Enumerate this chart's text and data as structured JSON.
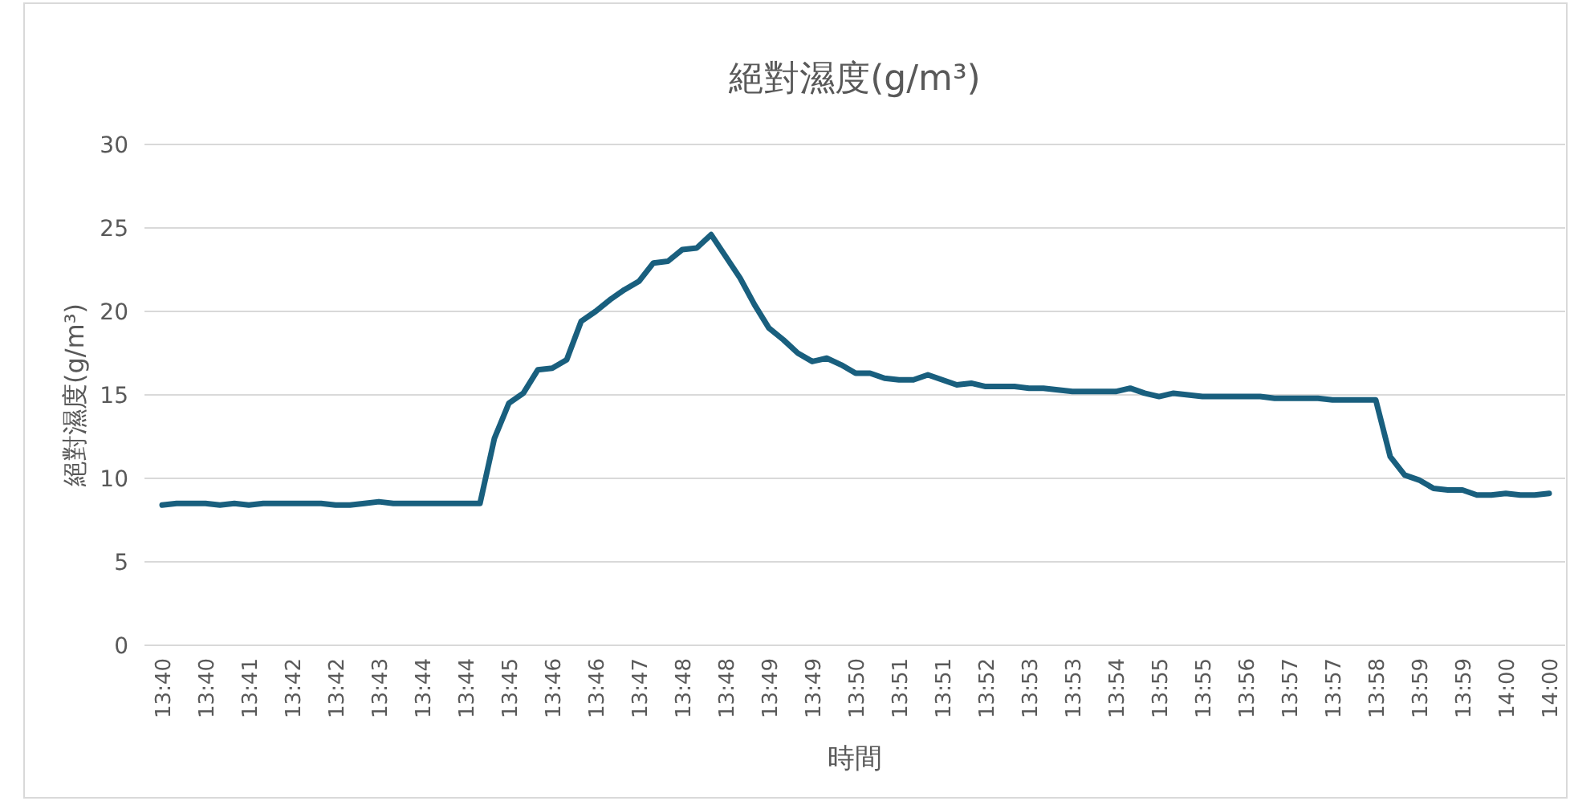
{
  "chart_data": {
    "type": "line",
    "title": "絕對濕度(g/m³)",
    "xlabel": "時間",
    "ylabel": "絕對濕度(g/m³)",
    "categories": [
      "13:40",
      null,
      null,
      "13:40",
      null,
      null,
      "13:41",
      null,
      null,
      "13:42",
      null,
      null,
      "13:42",
      null,
      null,
      "13:43",
      null,
      null,
      "13:44",
      null,
      null,
      "13:44",
      null,
      null,
      "13:45",
      null,
      null,
      "13:46",
      null,
      null,
      "13:46",
      null,
      null,
      "13:47",
      null,
      null,
      "13:48",
      null,
      null,
      "13:48",
      null,
      null,
      "13:49",
      null,
      null,
      "13:49",
      null,
      null,
      "13:50",
      null,
      null,
      "13:51",
      null,
      null,
      "13:51",
      null,
      null,
      "13:52",
      null,
      null,
      "13:53",
      null,
      null,
      "13:53",
      null,
      null,
      "13:54",
      null,
      null,
      "13:55",
      null,
      null,
      "13:55",
      null,
      null,
      "13:56",
      null,
      null,
      "13:57",
      null,
      null,
      "13:57",
      null,
      null,
      "13:58",
      null,
      null,
      "13:59",
      null,
      null,
      "13:59",
      null,
      null,
      "14:00",
      null,
      null,
      "14:00"
    ],
    "series": [
      {
        "color": "#195f7e",
        "values": [
          8.4,
          8.5,
          8.5,
          8.5,
          8.4,
          8.5,
          8.4,
          8.5,
          8.5,
          8.5,
          8.5,
          8.5,
          8.4,
          8.4,
          8.5,
          8.6,
          8.5,
          8.5,
          8.5,
          8.5,
          8.5,
          8.5,
          8.5,
          12.4,
          14.5,
          15.1,
          16.5,
          16.6,
          17.1,
          19.4,
          20.0,
          20.7,
          21.3,
          21.8,
          22.9,
          23.0,
          23.7,
          23.8,
          24.6,
          23.3,
          22.0,
          20.4,
          19.0,
          18.3,
          17.5,
          17.0,
          17.2,
          16.8,
          16.3,
          16.3,
          16.0,
          15.9,
          15.9,
          16.2,
          15.9,
          15.6,
          15.7,
          15.5,
          15.5,
          15.5,
          15.4,
          15.4,
          15.3,
          15.2,
          15.2,
          15.2,
          15.2,
          15.4,
          15.1,
          14.9,
          15.1,
          15.0,
          14.9,
          14.9,
          14.9,
          14.9,
          14.9,
          14.8,
          14.8,
          14.8,
          14.8,
          14.7,
          14.7,
          14.7,
          14.7,
          11.3,
          10.2,
          9.9,
          9.4,
          9.3,
          9.3,
          9.0,
          9.0,
          9.1,
          9.0,
          9.0,
          9.1
        ]
      }
    ],
    "ylim": [
      0,
      30
    ],
    "yticks": [
      0,
      5,
      10,
      15,
      20,
      25,
      30
    ],
    "grid": "y"
  }
}
